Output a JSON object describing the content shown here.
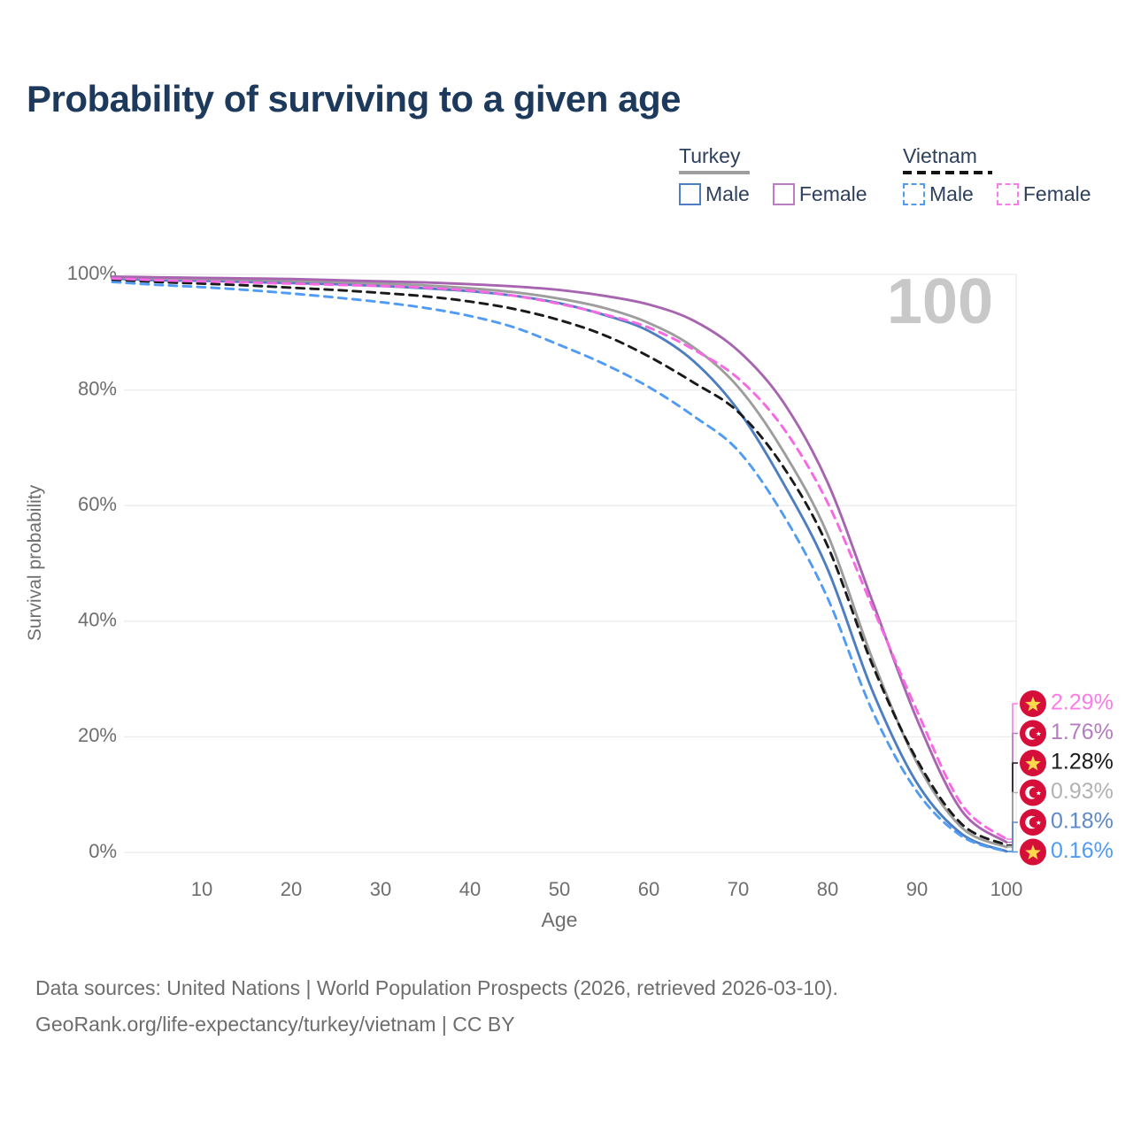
{
  "title": "Probability of surviving to a given age",
  "age_indicator": "100",
  "legend": {
    "groups": [
      {
        "name": "Turkey",
        "line_style": "solid",
        "line_color": "#9e9e9e",
        "items": [
          {
            "label": "Male",
            "color": "#4d7ec1",
            "style": "solid"
          },
          {
            "label": "Female",
            "color": "#bd7dc6",
            "style": "solid"
          }
        ]
      },
      {
        "name": "Vietnam",
        "line_style": "dashed",
        "line_color": "#141414",
        "items": [
          {
            "label": "Male",
            "color": "#509bf4",
            "style": "dashed"
          },
          {
            "label": "Female",
            "color": "#fb7ce8",
            "style": "dashed"
          }
        ]
      }
    ]
  },
  "axes": {
    "x_label": "Age",
    "y_label": "Survival probability",
    "x_ticks": [
      10,
      20,
      30,
      40,
      50,
      60,
      70,
      80,
      90,
      100
    ],
    "y_ticks": [
      "0%",
      "20%",
      "40%",
      "60%",
      "80%",
      "100%"
    ],
    "x_range": [
      0,
      100
    ],
    "y_range": [
      0,
      100
    ],
    "grid": true
  },
  "chart_data": {
    "type": "line",
    "title": "Probability of surviving to a given age",
    "xlabel": "Age",
    "ylabel": "Survival probability",
    "xlim": [
      0,
      100
    ],
    "ylim": [
      0,
      100
    ],
    "x": [
      0,
      5,
      10,
      15,
      20,
      25,
      30,
      35,
      40,
      45,
      50,
      55,
      60,
      65,
      70,
      75,
      80,
      85,
      90,
      95,
      100
    ],
    "series": [
      {
        "name": "Turkey Male",
        "country": "Turkey",
        "sex": "Male",
        "style": "solid",
        "color": "#4d7ec1",
        "label_color": "#5d89c8",
        "end_label": "0.18%",
        "flag": "turkey",
        "values": [
          99.3,
          99.0,
          98.9,
          98.7,
          98.5,
          98.3,
          98.0,
          97.6,
          97.1,
          96.3,
          95.0,
          93.0,
          90.2,
          85.0,
          76.5,
          64.0,
          49.0,
          28.0,
          12.0,
          3.2,
          0.18
        ]
      },
      {
        "name": "Vietnam Male",
        "country": "Vietnam",
        "sex": "Male",
        "style": "dashed",
        "color": "#509bf4",
        "label_color": "#509bf4",
        "end_label": "0.16%",
        "flag": "vietnam",
        "values": [
          98.7,
          98.2,
          97.8,
          97.3,
          96.7,
          96.0,
          95.2,
          94.2,
          92.8,
          90.8,
          87.8,
          84.5,
          80.5,
          75.5,
          69.5,
          58.5,
          44.0,
          24.5,
          10.5,
          2.8,
          0.16
        ]
      },
      {
        "name": "Turkey",
        "country": "Turkey",
        "sex": "Both",
        "style": "solid",
        "color": "#9d9d9d",
        "label_color": "#b2b2b2",
        "end_label": "0.93%",
        "flag": "turkey",
        "values": [
          99.5,
          99.3,
          99.2,
          99.1,
          98.9,
          98.7,
          98.4,
          98.1,
          97.6,
          96.9,
          95.8,
          94.2,
          91.6,
          87.4,
          80.5,
          69.5,
          55.0,
          33.5,
          15.5,
          4.3,
          0.93
        ]
      },
      {
        "name": "Vietnam",
        "country": "Vietnam",
        "sex": "Both",
        "style": "dashed",
        "color": "#1a1a1a",
        "label_color": "#1a1a1a",
        "end_label": "1.28%",
        "flag": "vietnam",
        "values": [
          99.1,
          98.7,
          98.4,
          98.1,
          97.7,
          97.3,
          96.8,
          96.2,
          95.3,
          94.0,
          92.1,
          89.5,
          85.8,
          81.3,
          76.2,
          66.8,
          53.0,
          32.5,
          16.0,
          4.9,
          1.28
        ]
      },
      {
        "name": "Turkey Female",
        "country": "Turkey",
        "sex": "Female",
        "style": "solid",
        "color": "#a765af",
        "label_color": "#b47cbf",
        "end_label": "1.76%",
        "flag": "turkey",
        "values": [
          99.6,
          99.5,
          99.4,
          99.3,
          99.2,
          99.0,
          98.8,
          98.6,
          98.3,
          97.9,
          97.3,
          96.3,
          94.8,
          92.0,
          86.8,
          78.0,
          64.0,
          43.5,
          23.0,
          7.2,
          1.76
        ]
      },
      {
        "name": "Vietnam Female",
        "country": "Vietnam",
        "sex": "Female",
        "style": "dashed",
        "color": "#f768e2",
        "label_color": "#fb7ce8",
        "end_label": "2.29%",
        "flag": "vietnam",
        "values": [
          99.3,
          99.0,
          98.8,
          98.6,
          98.4,
          98.2,
          98.0,
          97.7,
          97.2,
          96.3,
          94.9,
          93.1,
          90.8,
          87.0,
          82.0,
          73.5,
          60.5,
          42.5,
          24.5,
          8.3,
          2.29
        ]
      }
    ],
    "legend_position": "top-right"
  },
  "colors": {
    "title": "#1d3a5c",
    "grid": "#ebebeb",
    "tick_text": "#6e6e6e",
    "watermark": "#c8c8c8",
    "flag_red": "#d50f3a",
    "flag_star_yellow": "#ffd84d"
  },
  "footer": {
    "line1": "Data sources: United Nations | World Population Prospects (2026, retrieved 2026-03-10).",
    "line2": "GeoRank.org/life-expectancy/turkey/vietnam | CC BY"
  }
}
